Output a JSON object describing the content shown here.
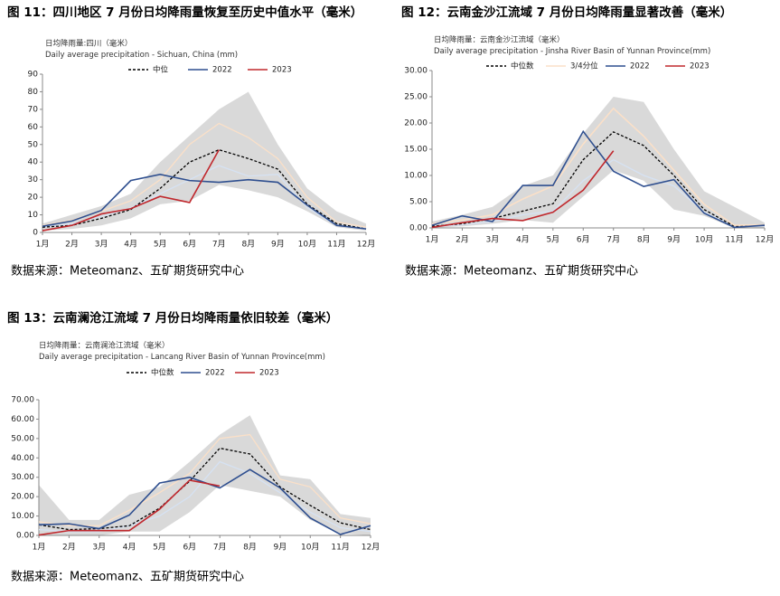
{
  "chart_data": [
    {
      "type": "line",
      "title": "图 11：四川地区 7 月份日均降雨量恢复至历史中值水平（毫米）",
      "subtitle": [
        "日均降雨量:四川（毫米）",
        "Daily average precipitation - Sichuan, China (mm)"
      ],
      "categories": [
        "1月",
        "2月",
        "3月",
        "4月",
        "5月",
        "6月",
        "7月",
        "8月",
        "9月",
        "10月",
        "11月",
        "12月"
      ],
      "ylim": [
        0,
        90
      ],
      "yticks": [
        0,
        10,
        20,
        30,
        40,
        50,
        60,
        70,
        80,
        90
      ],
      "band": {
        "color": "#d9d9d9",
        "upper": [
          5,
          10,
          15,
          22,
          40,
          55,
          70,
          80,
          50,
          25,
          12,
          5
        ],
        "lower": [
          1,
          2,
          4,
          8,
          16,
          18,
          27,
          24,
          20,
          12,
          3,
          1
        ]
      },
      "extra_lines": [
        {
          "color": "#fbe0c8",
          "values": [
            4,
            7,
            12,
            18,
            30,
            50,
            62,
            54,
            42,
            20,
            6,
            3
          ]
        },
        {
          "color": "#d6e2f3",
          "values": [
            3,
            5,
            9,
            14,
            22,
            30,
            38,
            32,
            33,
            14,
            4,
            2
          ]
        }
      ],
      "series": [
        {
          "name": "中位",
          "color": "#000000",
          "dash": true,
          "values": [
            3,
            4,
            8,
            13,
            25,
            40,
            47,
            42,
            36,
            16,
            5,
            2
          ]
        },
        {
          "name": "2022",
          "color": "#2f4f8f",
          "values": [
            3.5,
            6.5,
            12.5,
            29.5,
            33,
            29.5,
            28.5,
            30,
            28.5,
            15.5,
            4,
            2
          ]
        },
        {
          "name": "2023",
          "color": "#c0282d",
          "values": [
            1,
            4,
            10.5,
            13.5,
            20.5,
            17,
            47,
            null,
            null,
            null,
            null,
            null
          ]
        }
      ],
      "source": "数据来源：Meteomanz、五矿期货研究中心"
    },
    {
      "type": "line",
      "title": "图 12：云南金沙江流域 7 月份日均降雨量显著改善（毫米）",
      "subtitle": [
        "日均降雨量：云南金沙江流域（毫米）",
        "Daily average precipitation - Jinsha River Basin of Yunnan Province(mm)"
      ],
      "categories": [
        "1月",
        "2月",
        "3月",
        "4月",
        "5月",
        "6月",
        "7月",
        "8月",
        "9月",
        "10月",
        "11月",
        "12月"
      ],
      "ylim": [
        0,
        30
      ],
      "yticks": [
        {
          "value": 0,
          "label": "0.00"
        },
        {
          "value": 5,
          "label": "5.00"
        },
        {
          "value": 10,
          "label": "10.00"
        },
        {
          "value": 15,
          "label": "15.00"
        },
        {
          "value": 20,
          "label": "20.00"
        },
        {
          "value": 25,
          "label": "25.00"
        },
        {
          "value": 30,
          "label": "30.00"
        }
      ],
      "band": {
        "color": "#d9d9d9",
        "upper": [
          1.2,
          2.5,
          4,
          8,
          10,
          18,
          25,
          24,
          15,
          7,
          4,
          1
        ],
        "lower": [
          0,
          0.3,
          0.8,
          1.5,
          1,
          6,
          11,
          9,
          3.5,
          2.3,
          0,
          0
        ]
      },
      "extra_lines": [
        {
          "color": "#d6e2f3",
          "values": [
            0.2,
            0.6,
            1.2,
            2.5,
            3.2,
            9,
            13,
            10,
            8,
            3,
            0.2,
            0.4
          ]
        }
      ],
      "series": [
        {
          "name": "中位数",
          "color": "#000000",
          "dash": true,
          "values": [
            0.3,
            0.8,
            1.8,
            3.2,
            4.6,
            13,
            18.3,
            15.7,
            10,
            3.5,
            0.3,
            0.5
          ]
        },
        {
          "name": "3/4分位",
          "color": "#fbe0c8",
          "values": [
            0.8,
            1.5,
            2.5,
            5.5,
            8,
            16,
            22.8,
            17.5,
            11,
            4.5,
            0.5,
            0.6
          ]
        },
        {
          "name": "2022",
          "color": "#2f4f8f",
          "values": [
            0.5,
            2.3,
            1.2,
            8.1,
            8.1,
            18.4,
            10.8,
            7.9,
            9.2,
            2.8,
            0.1,
            0.5
          ]
        },
        {
          "name": "2023",
          "color": "#c0282d",
          "values": [
            0.1,
            1,
            1.8,
            1.4,
            3,
            7.2,
            14.7,
            null,
            null,
            null,
            null,
            null
          ]
        }
      ],
      "source": "数据来源：Meteomanz、五矿期货研究中心"
    },
    {
      "type": "line",
      "title": "图 13：云南澜沧江流域 7 月份日均降雨量依旧较差（毫米）",
      "subtitle": [
        "日均降雨量：云南澜沧江流域（毫米）",
        "Daily average precipitation - Lancang River Basin of Yunnan Province(mm)"
      ],
      "categories": [
        "1月",
        "2月",
        "3月",
        "4月",
        "5月",
        "6月",
        "7月",
        "8月",
        "9月",
        "10月",
        "11月",
        "12月"
      ],
      "ylim": [
        0,
        70
      ],
      "yticks": [
        {
          "value": 0,
          "label": "0.00"
        },
        {
          "value": 10,
          "label": "10.00"
        },
        {
          "value": 20,
          "label": "20.00"
        },
        {
          "value": 30,
          "label": "30.00"
        },
        {
          "value": 40,
          "label": "40.00"
        },
        {
          "value": 50,
          "label": "50.00"
        },
        {
          "value": 60,
          "label": "60.00"
        },
        {
          "value": 70,
          "label": "70.00"
        }
      ],
      "band": {
        "color": "#d9d9d9",
        "upper": [
          26,
          8,
          8,
          21,
          25,
          38,
          52,
          62,
          31,
          29,
          11,
          9
        ],
        "lower": [
          0,
          0,
          0,
          2,
          2,
          12,
          26,
          23,
          20,
          8,
          1,
          0
        ]
      },
      "extra_lines": [
        {
          "color": "#fbe0c8",
          "values": [
            7,
            5,
            5,
            13,
            22,
            32,
            50,
            52,
            29,
            25,
            9,
            6
          ]
        },
        {
          "color": "#d6e2f3",
          "values": [
            3,
            2,
            2,
            5,
            10,
            20,
            38,
            32,
            22,
            12,
            4,
            2
          ]
        }
      ],
      "series": [
        {
          "name": "中位数",
          "color": "#000000",
          "dash": true,
          "values": [
            5.5,
            3,
            3.5,
            5,
            14,
            28,
            45,
            42,
            25,
            15.5,
            6.5,
            3
          ]
        },
        {
          "name": "2022",
          "color": "#2f4f8f",
          "values": [
            5.5,
            6,
            3.5,
            10.5,
            27,
            30,
            24.5,
            34,
            24.5,
            9,
            0.5,
            5
          ]
        },
        {
          "name": "2023",
          "color": "#c0282d",
          "values": [
            0.2,
            2.5,
            2.5,
            2.5,
            13.5,
            28.5,
            25.5,
            null,
            null,
            null,
            null,
            null
          ]
        }
      ],
      "source": "数据来源：Meteomanz、五矿期货研究中心"
    }
  ]
}
